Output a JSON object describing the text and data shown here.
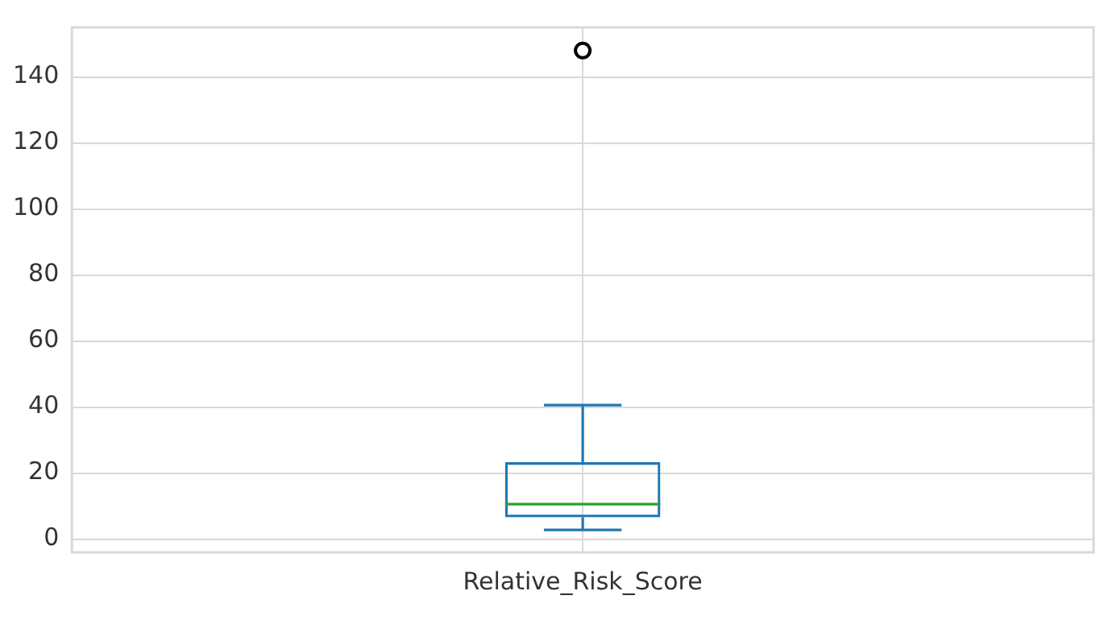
{
  "chart_data": {
    "type": "box",
    "categories": [
      "Relative_Risk_Score"
    ],
    "boxes": [
      {
        "low": 2.8,
        "q1": 6.6,
        "median": 10.6,
        "q3": 23.3,
        "high": 40.6,
        "outliers": [
          148
        ]
      }
    ],
    "color": "#1f77b4",
    "ylim": [
      -4,
      155
    ],
    "yticks": [
      0,
      20,
      40,
      60,
      80,
      100,
      120,
      140
    ],
    "grid": true,
    "legend": false,
    "marker": "circle"
  }
}
